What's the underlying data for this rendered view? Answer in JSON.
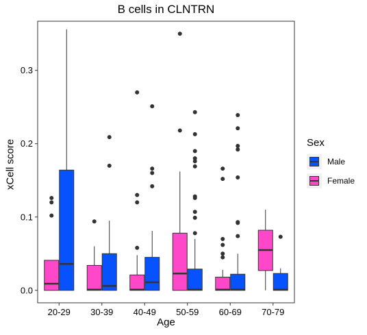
{
  "chart_data": {
    "type": "box",
    "title": "B cells in CLNTRN",
    "xlabel": "Age",
    "ylabel": "xCell score",
    "categories": [
      "20-29",
      "30-39",
      "40-49",
      "50-59",
      "60-69",
      "70-79"
    ],
    "ylim": [
      -0.017,
      0.367
    ],
    "yticks": [
      0.0,
      0.1,
      0.2,
      0.3
    ],
    "ytick_labels": [
      "0.0",
      "0.1",
      "0.2",
      "0.3"
    ],
    "legend": {
      "title": "Sex",
      "position": "right",
      "entries": [
        "Male",
        "Female"
      ]
    },
    "colors": {
      "Male": "#0652ff",
      "Female": "#ff47c9",
      "panel_border": "#333333",
      "whisker": "#333333"
    },
    "series": [
      {
        "name": "Female",
        "boxes": [
          {
            "category": "20-29",
            "whisker_low": 0.0,
            "q1": 0.0,
            "median": 0.009,
            "q3": 0.041,
            "whisker_high": 0.041,
            "outliers": [
              0.102,
              0.12,
              0.126
            ]
          },
          {
            "category": "30-39",
            "whisker_low": 0.0,
            "q1": 0.0,
            "median": 0.001,
            "q3": 0.034,
            "whisker_high": 0.06,
            "outliers": [
              0.094
            ]
          },
          {
            "category": "40-49",
            "whisker_low": 0.0,
            "q1": 0.0,
            "median": 0.001,
            "q3": 0.021,
            "whisker_high": 0.048,
            "outliers": [
              0.058,
              0.12,
              0.13,
              0.27
            ]
          },
          {
            "category": "50-59",
            "whisker_low": 0.0,
            "q1": 0.0,
            "median": 0.023,
            "q3": 0.078,
            "whisker_high": 0.162,
            "outliers": [
              0.218,
              0.35
            ]
          },
          {
            "category": "60-69",
            "whisker_low": 0.0,
            "q1": 0.0,
            "median": 0.001,
            "q3": 0.018,
            "whisker_high": 0.028,
            "outliers": [
              0.045,
              0.05,
              0.062,
              0.07,
              0.152,
              0.166
            ]
          },
          {
            "category": "70-79",
            "whisker_low": 0.0,
            "q1": 0.027,
            "median": 0.055,
            "q3": 0.082,
            "whisker_high": 0.11,
            "outliers": []
          }
        ]
      },
      {
        "name": "Male",
        "boxes": [
          {
            "category": "20-29",
            "whisker_low": 0.0,
            "q1": 0.0,
            "median": 0.036,
            "q3": 0.164,
            "whisker_high": 0.356,
            "outliers": []
          },
          {
            "category": "30-39",
            "whisker_low": 0.0,
            "q1": 0.0,
            "median": 0.006,
            "q3": 0.05,
            "whisker_high": 0.095,
            "outliers": [
              0.17,
              0.209
            ]
          },
          {
            "category": "40-49",
            "whisker_low": 0.0,
            "q1": 0.0,
            "median": 0.011,
            "q3": 0.045,
            "whisker_high": 0.081,
            "outliers": [
              0.142,
              0.16,
              0.166,
              0.251
            ]
          },
          {
            "category": "50-59",
            "whisker_low": 0.0,
            "q1": 0.0,
            "median": 0.001,
            "q3": 0.029,
            "whisker_high": 0.07,
            "outliers": [
              0.078,
              0.099,
              0.107,
              0.126,
              0.128,
              0.169,
              0.176,
              0.18,
              0.19,
              0.213,
              0.243
            ]
          },
          {
            "category": "60-69",
            "whisker_low": 0.0,
            "q1": 0.0,
            "median": 0.001,
            "q3": 0.022,
            "whisker_high": 0.05,
            "outliers": [
              0.074,
              0.092,
              0.093,
              0.154,
              0.192,
              0.197,
              0.221,
              0.239
            ]
          },
          {
            "category": "70-79",
            "whisker_low": 0.0,
            "q1": 0.0,
            "median": 0.001,
            "q3": 0.023,
            "whisker_high": 0.03,
            "outliers": [
              0.073
            ]
          }
        ]
      }
    ]
  }
}
